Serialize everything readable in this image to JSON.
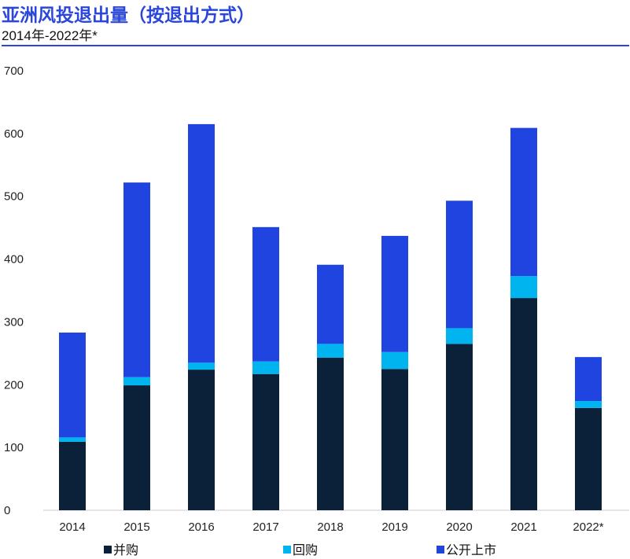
{
  "chart_data": {
    "type": "bar",
    "stacked": true,
    "title": "亚洲风投退出量（按退出方式）",
    "subtitle": "2014年-2022年*",
    "xlabel": "",
    "ylabel": "",
    "categories": [
      "2014",
      "2015",
      "2016",
      "2017",
      "2018",
      "2019",
      "2020",
      "2021",
      "2022*"
    ],
    "ylim": [
      0,
      700
    ],
    "yticks": [
      0,
      100,
      200,
      300,
      400,
      500,
      600,
      700
    ],
    "legend_position": "bottom",
    "series": [
      {
        "name": "并购",
        "color": "#0a2139",
        "values": [
          109,
          199,
          224,
          217,
          243,
          225,
          265,
          338,
          163
        ]
      },
      {
        "name": "回购",
        "color": "#00b4ef",
        "values": [
          7,
          13,
          11,
          20,
          22,
          27,
          25,
          35,
          11
        ]
      },
      {
        "name": "公开上市",
        "color": "#1f44e0",
        "values": [
          167,
          310,
          380,
          214,
          126,
          185,
          203,
          236,
          70
        ]
      }
    ]
  }
}
